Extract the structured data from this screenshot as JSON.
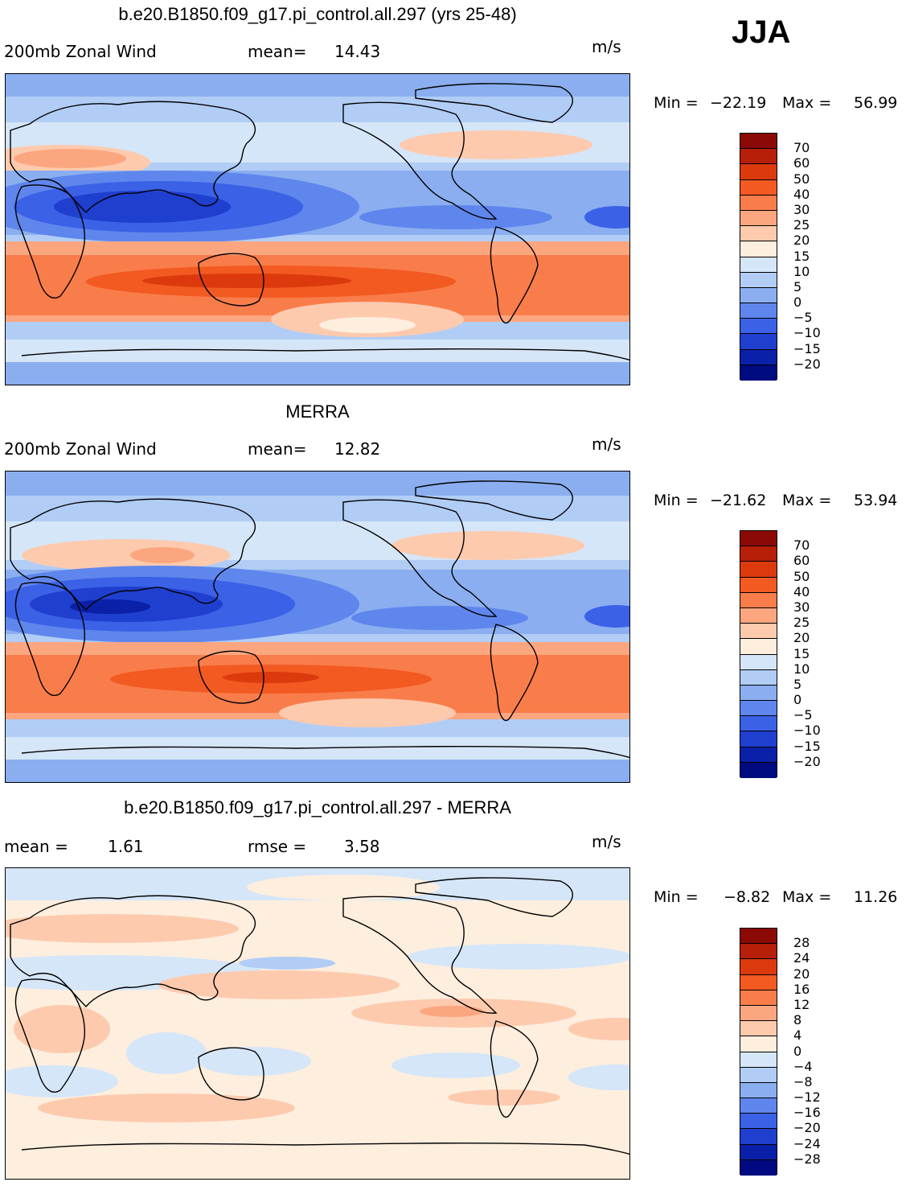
{
  "season": "JJA",
  "units": "m/s",
  "coast_color": "#000000",
  "panels": [
    {
      "title": "b.e20.B1850.f09_g17.pi_control.all.297 (yrs 25-48)",
      "left_label": "200mb Zonal Wind",
      "stat_label": "mean=",
      "stat_value": "14.43",
      "stat2_label": "",
      "stat2_value": "",
      "min_label": "Min =",
      "min_value": "−22.19",
      "max_label": "Max =",
      "max_value": "56.99",
      "levels": [
        "70",
        "60",
        "50",
        "40",
        "30",
        "25",
        "20",
        "15",
        "10",
        "5",
        "0",
        "−5",
        "−10",
        "−15",
        "−20"
      ],
      "colors": [
        "#8c0a05",
        "#b71f08",
        "#dc3a0d",
        "#f25a22",
        "#f97d4a",
        "#fca680",
        "#fdcaae",
        "#fdeede",
        "#d5e6f8",
        "#b1cdf5",
        "#8aaef0",
        "#5f86ec",
        "#3b61e6",
        "#1f3fcf",
        "#0a20a8",
        "#000a80"
      ]
    },
    {
      "title": "MERRA",
      "left_label": "200mb Zonal Wind",
      "stat_label": "mean=",
      "stat_value": "12.82",
      "stat2_label": "",
      "stat2_value": "",
      "min_label": "Min =",
      "min_value": "−21.62",
      "max_label": "Max =",
      "max_value": "53.94",
      "levels": [
        "70",
        "60",
        "50",
        "40",
        "30",
        "25",
        "20",
        "15",
        "10",
        "5",
        "0",
        "−5",
        "−10",
        "−15",
        "−20"
      ],
      "colors": [
        "#8c0a05",
        "#b71f08",
        "#dc3a0d",
        "#f25a22",
        "#f97d4a",
        "#fca680",
        "#fdcaae",
        "#fdeede",
        "#d5e6f8",
        "#b1cdf5",
        "#8aaef0",
        "#5f86ec",
        "#3b61e6",
        "#1f3fcf",
        "#0a20a8",
        "#000a80"
      ]
    },
    {
      "title": "b.e20.B1850.f09_g17.pi_control.all.297 - MERRA",
      "left_label": "",
      "stat_label": "mean =",
      "stat_value": "1.61",
      "stat2_label": "rmse =",
      "stat2_value": "3.58",
      "min_label": "Min =",
      "min_value": "−8.82",
      "max_label": "Max =",
      "max_value": "11.26",
      "levels": [
        "28",
        "24",
        "20",
        "16",
        "12",
        "8",
        "4",
        "0",
        "−4",
        "−8",
        "−12",
        "−16",
        "−20",
        "−24",
        "−28"
      ],
      "colors": [
        "#8c0a05",
        "#b71f08",
        "#dc3a0d",
        "#f25a22",
        "#f97d4a",
        "#fca680",
        "#fdcaae",
        "#fdeede",
        "#d5e6f8",
        "#b1cdf5",
        "#8aaef0",
        "#5f86ec",
        "#3b61e6",
        "#1f3fcf",
        "#0a20a8",
        "#000a80"
      ]
    }
  ]
}
